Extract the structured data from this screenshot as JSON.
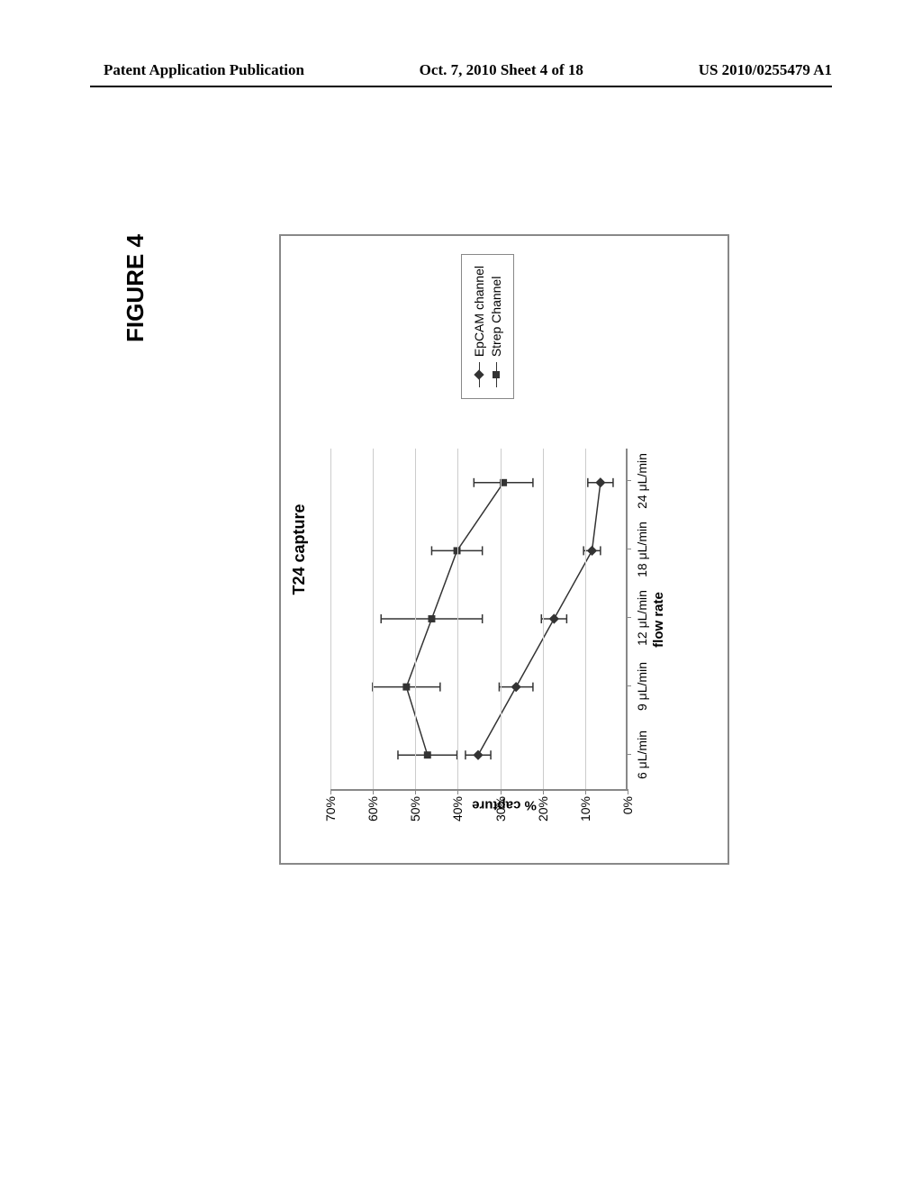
{
  "header": {
    "left": "Patent Application Publication",
    "center": "Oct. 7, 2010  Sheet 4 of 18",
    "right": "US 2010/0255479 A1"
  },
  "figure_label": "FIGURE 4",
  "chart": {
    "type": "line",
    "title": "T24 capture",
    "x_label": "flow rate",
    "y_label": "% capture",
    "background_color": "#ffffff",
    "border_color": "#888888",
    "grid_color": "#cccccc",
    "text_color": "#000000",
    "title_fontsize": 18,
    "label_fontsize": 15,
    "tick_fontsize": 14,
    "x_categories": [
      "6 μL/min",
      "9 μL/min",
      "12 μL/min",
      "18 μL/min",
      "24 μL/min"
    ],
    "y_ticks": [
      "0%",
      "10%",
      "20%",
      "30%",
      "40%",
      "50%",
      "60%",
      "70%"
    ],
    "y_min": 0,
    "y_max": 70,
    "series": [
      {
        "name": "EpCAM channel",
        "marker": "diamond",
        "color": "#333333",
        "values": [
          35,
          26,
          17,
          8,
          6
        ],
        "error": [
          3,
          4,
          3,
          2,
          3
        ]
      },
      {
        "name": "Strep Channel",
        "marker": "square",
        "color": "#333333",
        "values": [
          47,
          52,
          46,
          40,
          29
        ],
        "error": [
          7,
          8,
          12,
          6,
          7
        ]
      }
    ]
  },
  "page_number": "5"
}
